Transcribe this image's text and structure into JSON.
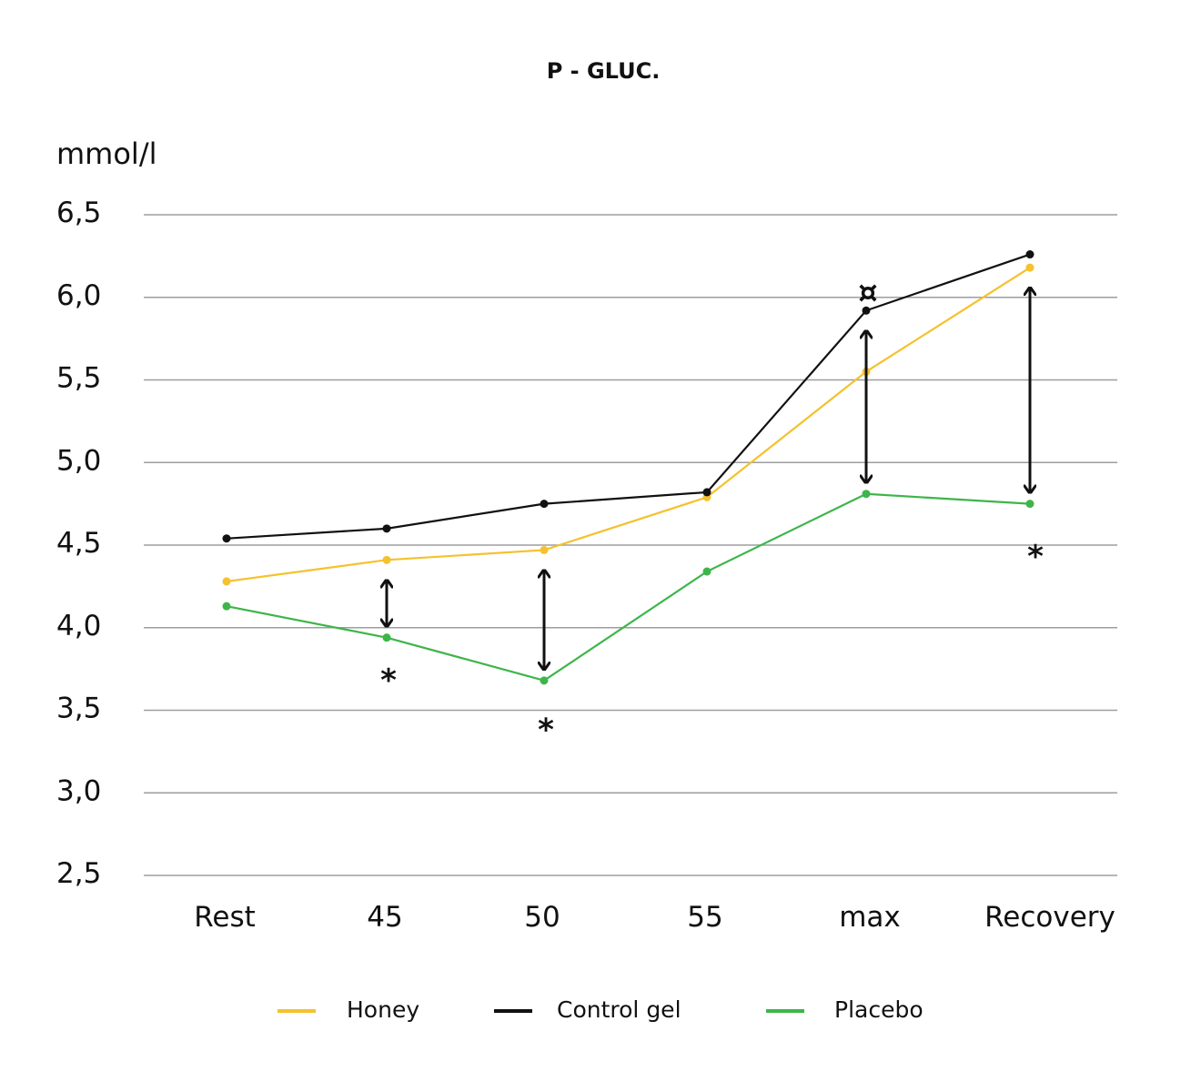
{
  "chart_data": {
    "type": "line",
    "title": "P - GLUC.",
    "ylabel": "mmol/l",
    "xlabel": "",
    "categories": [
      "Rest",
      "45",
      "50",
      "55",
      "max",
      "Recovery"
    ],
    "ylim": [
      2.5,
      6.5
    ],
    "yticks": [
      2.5,
      3.0,
      3.5,
      4.0,
      4.5,
      5.0,
      5.5,
      6.0,
      6.5
    ],
    "ytick_labels": [
      "2,5",
      "3,0",
      "3,5",
      "4,0",
      "4,5",
      "5,0",
      "5,5",
      "6,0",
      "6,5"
    ],
    "grid": true,
    "legend_position": "bottom",
    "series": [
      {
        "name": "Honey",
        "color": "#f5c12e",
        "values": [
          4.28,
          4.41,
          4.47,
          4.79,
          5.55,
          6.18
        ]
      },
      {
        "name": "Control gel",
        "color": "#111111",
        "values": [
          4.54,
          4.6,
          4.75,
          4.82,
          5.92,
          6.26
        ]
      },
      {
        "name": "Placebo",
        "color": "#3db54a",
        "values": [
          4.13,
          3.94,
          3.68,
          4.34,
          4.81,
          4.75
        ]
      }
    ],
    "annotations": [
      {
        "type": "double-arrow",
        "category": "45",
        "from": 3.94,
        "to": 4.41
      },
      {
        "type": "double-arrow",
        "category": "50",
        "from": 3.68,
        "to": 4.47
      },
      {
        "type": "double-arrow",
        "category": "max",
        "from": 4.81,
        "to": 5.92
      },
      {
        "type": "double-arrow",
        "category": "Recovery",
        "from": 4.75,
        "to": 6.18
      },
      {
        "type": "text",
        "text": "*",
        "category": "45",
        "y": 3.75
      },
      {
        "type": "text",
        "text": "*",
        "category": "50",
        "y": 3.45
      },
      {
        "type": "text",
        "text": "¤",
        "category": "max",
        "y": 6.1
      },
      {
        "type": "text",
        "text": "*",
        "category": "Recovery",
        "y": 4.5
      }
    ]
  }
}
